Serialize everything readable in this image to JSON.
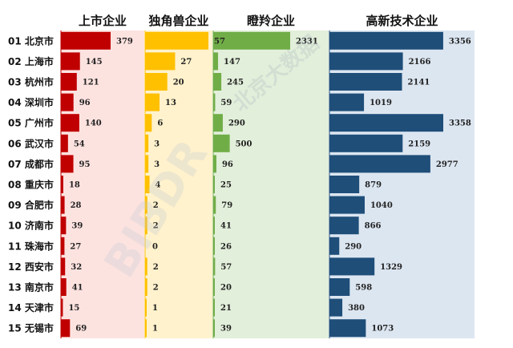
{
  "chart_data": {
    "type": "bar",
    "orientation": "horizontal",
    "categories": [
      {
        "rank": "01",
        "city": "北京市"
      },
      {
        "rank": "02",
        "city": "上海市"
      },
      {
        "rank": "03",
        "city": "杭州市"
      },
      {
        "rank": "04",
        "city": "深圳市"
      },
      {
        "rank": "05",
        "city": "广州市"
      },
      {
        "rank": "06",
        "city": "武汉市"
      },
      {
        "rank": "07",
        "city": "成都市"
      },
      {
        "rank": "08",
        "city": "重庆市"
      },
      {
        "rank": "09",
        "city": "合肥市"
      },
      {
        "rank": "10",
        "city": "济南市"
      },
      {
        "rank": "11",
        "city": "珠海市"
      },
      {
        "rank": "12",
        "city": "西安市"
      },
      {
        "rank": "13",
        "city": "南京市"
      },
      {
        "rank": "14",
        "city": "天津市"
      },
      {
        "rank": "15",
        "city": "无锡市"
      }
    ],
    "series": [
      {
        "name": "上市企业",
        "color": "#c00000",
        "background": "#fde3e0",
        "values": [
          379,
          145,
          121,
          96,
          140,
          54,
          95,
          18,
          28,
          39,
          27,
          32,
          41,
          15,
          69
        ]
      },
      {
        "name": "独角兽企业",
        "color": "#ffc000",
        "background": "#fff2cc",
        "values": [
          57,
          27,
          20,
          13,
          6,
          3,
          3,
          4,
          2,
          2,
          0,
          2,
          2,
          1,
          1
        ]
      },
      {
        "name": "瞪羚企业",
        "color": "#70ad47",
        "background": "#e2efda",
        "values": [
          2331,
          147,
          245,
          59,
          290,
          500,
          96,
          25,
          79,
          41,
          26,
          57,
          20,
          21,
          39
        ]
      },
      {
        "name": "高新技术企业",
        "color": "#1f4e79",
        "background": "#dce6f1",
        "values": [
          3356,
          2166,
          2141,
          1019,
          3358,
          2159,
          2977,
          879,
          1040,
          866,
          290,
          1329,
          598,
          380,
          1073
        ]
      }
    ]
  },
  "watermark": {
    "text": "北京大数据",
    "logo": "BIBDR"
  }
}
